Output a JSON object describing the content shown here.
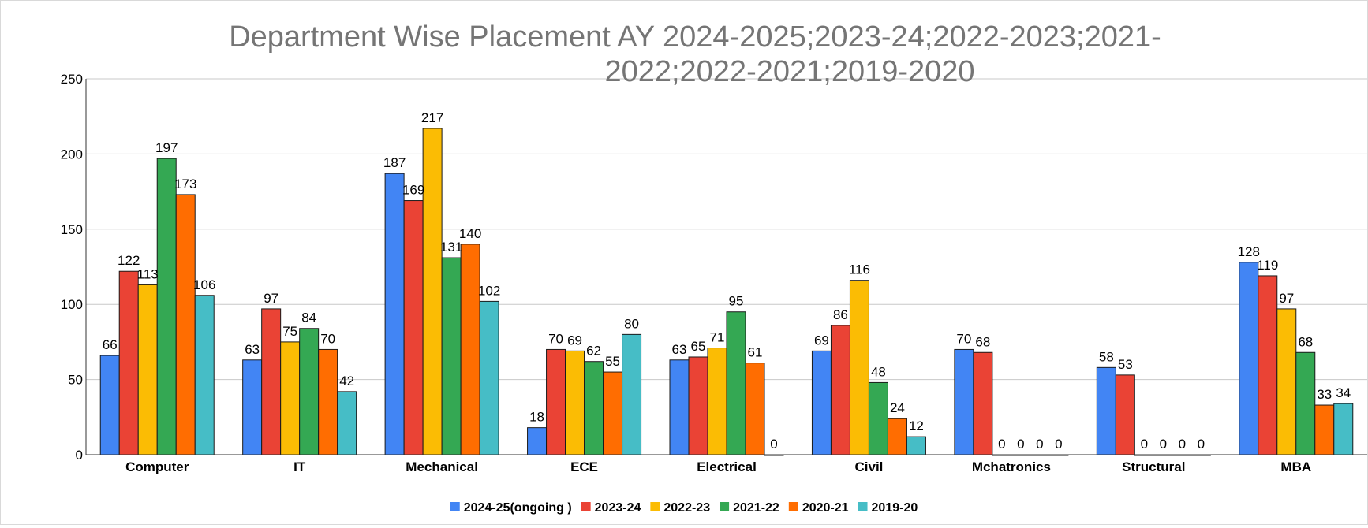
{
  "chart_data": {
    "type": "bar",
    "title_lines": [
      "Department Wise Placement AY 2024-2025;2023-24;2022-2023;2021-",
      "2022;2022-2021;2019-2020"
    ],
    "categories": [
      "Computer",
      "IT",
      "Mechanical",
      "ECE",
      "Electrical",
      "Civil",
      "Mchatronics",
      "Structural",
      "MBA"
    ],
    "series": [
      {
        "name": "2024-25(ongoing )",
        "color": "#4285f4",
        "values": [
          66,
          63,
          187,
          18,
          63,
          69,
          70,
          58,
          128
        ]
      },
      {
        "name": "2023-24",
        "color": "#ea4335",
        "values": [
          122,
          97,
          169,
          70,
          65,
          86,
          68,
          53,
          119
        ]
      },
      {
        "name": "2022-23",
        "color": "#fbbc04",
        "values": [
          113,
          75,
          217,
          69,
          71,
          116,
          0,
          0,
          97
        ]
      },
      {
        "name": "2021-22",
        "color": "#34a853",
        "values": [
          197,
          84,
          131,
          62,
          95,
          48,
          0,
          0,
          68
        ]
      },
      {
        "name": "2020-21",
        "color": "#ff6d01",
        "values": [
          173,
          70,
          140,
          55,
          61,
          24,
          0,
          0,
          33
        ]
      },
      {
        "name": "2019-20",
        "color": "#46bdc6",
        "values": [
          106,
          42,
          102,
          80,
          0,
          12,
          0,
          0,
          34
        ]
      }
    ],
    "yticks": [
      "0",
      "50",
      "100",
      "150",
      "200",
      "250"
    ],
    "ylim": [
      0,
      250
    ],
    "grid": true,
    "legend_position": "bottom"
  }
}
